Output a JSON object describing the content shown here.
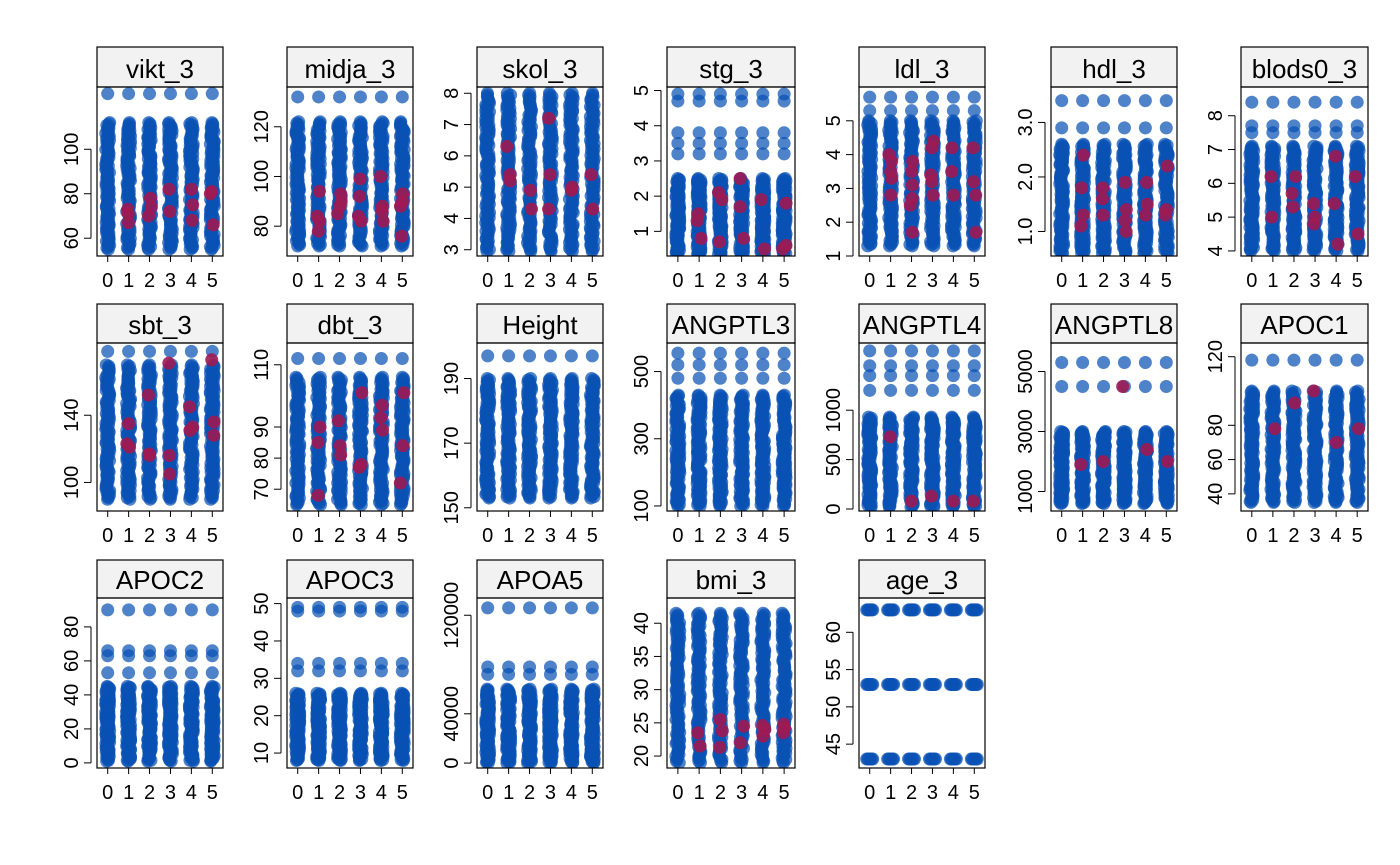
{
  "colors": {
    "observed": "#0a52b4",
    "imputed": "#9e1a52",
    "strip_fill": "#f2f2f2"
  },
  "chart_data": [
    {
      "type": "scatter",
      "title": "vikt_3",
      "x_ticks": [
        "0",
        "1",
        "2",
        "3",
        "4",
        "5"
      ],
      "y_ticks": [
        "60",
        "80",
        "100"
      ],
      "ylim": [
        52,
        128
      ],
      "obs_min": 55,
      "obs_max": 112,
      "outliers": [
        125
      ],
      "imputed": [
        [
          1,
          67
        ],
        [
          1,
          71
        ],
        [
          1,
          73
        ],
        [
          2,
          70
        ],
        [
          2,
          74
        ],
        [
          2,
          78
        ],
        [
          3,
          72
        ],
        [
          3,
          82
        ],
        [
          4,
          68
        ],
        [
          4,
          75
        ],
        [
          4,
          82
        ],
        [
          5,
          66
        ],
        [
          5,
          80
        ],
        [
          5,
          81
        ]
      ]
    },
    {
      "type": "scatter",
      "title": "midja_3",
      "x_ticks": [
        "0",
        "1",
        "2",
        "3",
        "4",
        "5"
      ],
      "y_ticks": [
        "80",
        "100",
        "120"
      ],
      "ylim": [
        68,
        136
      ],
      "obs_min": 72,
      "obs_max": 122,
      "outliers": [
        132
      ],
      "imputed": [
        [
          1,
          78
        ],
        [
          1,
          82
        ],
        [
          1,
          84
        ],
        [
          1,
          94
        ],
        [
          2,
          85
        ],
        [
          2,
          88
        ],
        [
          2,
          90
        ],
        [
          2,
          93
        ],
        [
          3,
          82
        ],
        [
          3,
          84
        ],
        [
          3,
          92
        ],
        [
          3,
          99
        ],
        [
          4,
          82
        ],
        [
          4,
          86
        ],
        [
          4,
          88
        ],
        [
          4,
          100
        ],
        [
          5,
          76
        ],
        [
          5,
          88
        ],
        [
          5,
          90
        ],
        [
          5,
          93
        ]
      ]
    },
    {
      "type": "scatter",
      "title": "skol_3",
      "x_ticks": [
        "0",
        "1",
        "2",
        "3",
        "4",
        "5"
      ],
      "y_ticks": [
        "3",
        "4",
        "5",
        "6",
        "7",
        "8"
      ],
      "ylim": [
        2.8,
        8.2
      ],
      "obs_min": 2.95,
      "obs_max": 8.0,
      "outliers": [],
      "imputed": [
        [
          1,
          5.2
        ],
        [
          1,
          5.4
        ],
        [
          1,
          6.3
        ],
        [
          2,
          4.3
        ],
        [
          2,
          4.9
        ],
        [
          3,
          4.3
        ],
        [
          3,
          5.4
        ],
        [
          3,
          7.2
        ],
        [
          4,
          4.9
        ],
        [
          4,
          5.0
        ],
        [
          5,
          4.3
        ],
        [
          5,
          5.4
        ]
      ]
    },
    {
      "type": "scatter",
      "title": "stg_3",
      "x_ticks": [
        "0",
        "1",
        "2",
        "3",
        "4",
        "5"
      ],
      "y_ticks": [
        "1",
        "2",
        "3",
        "4",
        "5"
      ],
      "ylim": [
        0.3,
        5.1
      ],
      "obs_min": 0.35,
      "obs_max": 2.5,
      "outliers": [
        3.2,
        3.5,
        3.8,
        4.7,
        4.9
      ],
      "imputed": [
        [
          1,
          0.8
        ],
        [
          1,
          1.3
        ],
        [
          1,
          1.5
        ],
        [
          2,
          0.7
        ],
        [
          2,
          1.9
        ],
        [
          2,
          2.1
        ],
        [
          3,
          0.8
        ],
        [
          3,
          1.7
        ],
        [
          3,
          2.5
        ],
        [
          4,
          0.5
        ],
        [
          4,
          1.9
        ],
        [
          5,
          0.5
        ],
        [
          5,
          0.6
        ],
        [
          5,
          1.8
        ]
      ]
    },
    {
      "type": "scatter",
      "title": "ldl_3",
      "x_ticks": [
        "0",
        "1",
        "2",
        "3",
        "4",
        "5"
      ],
      "y_ticks": [
        "1",
        "2",
        "3",
        "4",
        "5"
      ],
      "ylim": [
        1.0,
        6.0
      ],
      "obs_min": 1.3,
      "obs_max": 5.0,
      "outliers": [
        5.3,
        5.7
      ],
      "imputed": [
        [
          1,
          2.8
        ],
        [
          1,
          3.3
        ],
        [
          1,
          3.5
        ],
        [
          1,
          3.8
        ],
        [
          1,
          4.0
        ],
        [
          2,
          1.7
        ],
        [
          2,
          2.5
        ],
        [
          2,
          2.7
        ],
        [
          2,
          3.1
        ],
        [
          2,
          3.5
        ],
        [
          2,
          3.8
        ],
        [
          3,
          2.8
        ],
        [
          3,
          3.2
        ],
        [
          3,
          3.4
        ],
        [
          3,
          4.2
        ],
        [
          3,
          4.4
        ],
        [
          4,
          2.8
        ],
        [
          4,
          3.5
        ],
        [
          4,
          4.2
        ],
        [
          5,
          1.7
        ],
        [
          5,
          2.8
        ],
        [
          5,
          3.2
        ],
        [
          5,
          4.2
        ]
      ]
    },
    {
      "type": "scatter",
      "title": "hdl_3",
      "x_ticks": [
        "0",
        "1",
        "2",
        "3",
        "4",
        "5"
      ],
      "y_ticks": [
        "1.0",
        "2.0",
        "3.0"
      ],
      "ylim": [
        0.55,
        3.65
      ],
      "obs_min": 0.6,
      "obs_max": 2.6,
      "outliers": [
        2.9,
        3.4
      ],
      "imputed": [
        [
          1,
          1.1
        ],
        [
          1,
          1.3
        ],
        [
          1,
          1.8
        ],
        [
          1,
          2.4
        ],
        [
          2,
          1.3
        ],
        [
          2,
          1.6
        ],
        [
          2,
          1.8
        ],
        [
          3,
          1.0
        ],
        [
          3,
          1.2
        ],
        [
          3,
          1.4
        ],
        [
          3,
          1.9
        ],
        [
          4,
          1.3
        ],
        [
          4,
          1.5
        ],
        [
          4,
          1.9
        ],
        [
          5,
          1.3
        ],
        [
          5,
          1.4
        ],
        [
          5,
          2.2
        ]
      ]
    },
    {
      "type": "scatter",
      "title": "blods0_3",
      "x_ticks": [
        "0",
        "1",
        "2",
        "3",
        "4",
        "5"
      ],
      "y_ticks": [
        "4",
        "5",
        "6",
        "7",
        "8"
      ],
      "ylim": [
        3.85,
        8.85
      ],
      "obs_min": 4.0,
      "obs_max": 7.1,
      "outliers": [
        7.5,
        7.7,
        8.4
      ],
      "imputed": [
        [
          1,
          5.0
        ],
        [
          1,
          6.2
        ],
        [
          2,
          5.3
        ],
        [
          2,
          5.7
        ],
        [
          2,
          6.2
        ],
        [
          3,
          4.8
        ],
        [
          3,
          5.0
        ],
        [
          3,
          5.4
        ],
        [
          4,
          4.2
        ],
        [
          4,
          5.4
        ],
        [
          4,
          6.8
        ],
        [
          5,
          4.5
        ],
        [
          5,
          6.2
        ]
      ]
    },
    {
      "type": "scatter",
      "title": "sbt_3",
      "x_ticks": [
        "0",
        "1",
        "2",
        "3",
        "4",
        "5"
      ],
      "y_ticks": [
        "100",
        "140"
      ],
      "ylim": [
        83,
        183
      ],
      "obs_min": 90,
      "obs_max": 170,
      "outliers": [
        178
      ],
      "imputed": [
        [
          1,
          121
        ],
        [
          1,
          123
        ],
        [
          1,
          135
        ],
        [
          2,
          116
        ],
        [
          2,
          117
        ],
        [
          2,
          152
        ],
        [
          3,
          105
        ],
        [
          3,
          116
        ],
        [
          3,
          171
        ],
        [
          4,
          131
        ],
        [
          4,
          133
        ],
        [
          4,
          145
        ],
        [
          5,
          128
        ],
        [
          5,
          136
        ],
        [
          5,
          173
        ]
      ]
    },
    {
      "type": "scatter",
      "title": "dbt_3",
      "x_ticks": [
        "0",
        "1",
        "2",
        "3",
        "4",
        "5"
      ],
      "y_ticks": [
        "70",
        "80",
        "90",
        "110"
      ],
      "ylim": [
        63,
        117
      ],
      "obs_min": 65,
      "obs_max": 106,
      "outliers": [
        112
      ],
      "imputed": [
        [
          1,
          68
        ],
        [
          1,
          85
        ],
        [
          1,
          90
        ],
        [
          2,
          81
        ],
        [
          2,
          84
        ],
        [
          2,
          92
        ],
        [
          3,
          77
        ],
        [
          3,
          78
        ],
        [
          3,
          101
        ],
        [
          4,
          89
        ],
        [
          4,
          93
        ],
        [
          4,
          97
        ],
        [
          5,
          72
        ],
        [
          5,
          84
        ],
        [
          5,
          101
        ]
      ]
    },
    {
      "type": "scatter",
      "title": "Height",
      "x_ticks": [
        "0",
        "1",
        "2",
        "3",
        "4",
        "5"
      ],
      "y_ticks": [
        "150",
        "170",
        "190"
      ],
      "ylim": [
        149,
        201
      ],
      "obs_min": 153,
      "obs_max": 190,
      "outliers": [
        197
      ],
      "imputed": []
    },
    {
      "type": "scatter",
      "title": "ANGPTL3",
      "x_ticks": [
        "0",
        "1",
        "2",
        "3",
        "4",
        "5"
      ],
      "y_ticks": [
        "100",
        "300",
        "500"
      ],
      "ylim": [
        85,
        585
      ],
      "obs_min": 100,
      "obs_max": 430,
      "outliers": [
        480,
        520,
        555
      ],
      "imputed": []
    },
    {
      "type": "scatter",
      "title": "ANGPTL4",
      "x_ticks": [
        "0",
        "1",
        "2",
        "3",
        "4",
        "5"
      ],
      "y_ticks": [
        "0",
        "500",
        "1000"
      ],
      "ylim": [
        -20,
        1680
      ],
      "obs_min": 20,
      "obs_max": 930,
      "outliers": [
        1200,
        1350,
        1450,
        1600
      ],
      "imputed": [
        [
          1,
          730
        ],
        [
          2,
          80
        ],
        [
          3,
          130
        ],
        [
          4,
          80
        ],
        [
          5,
          80
        ]
      ]
    },
    {
      "type": "scatter",
      "title": "ANGPTL8",
      "x_ticks": [
        "0",
        "1",
        "2",
        "3",
        "4",
        "5"
      ],
      "y_ticks": [
        "1000",
        "3000",
        "5000"
      ],
      "ylim": [
        350,
        5950
      ],
      "obs_min": 600,
      "obs_max": 3000,
      "outliers": [
        4500,
        5300
      ],
      "imputed": [
        [
          1,
          1900
        ],
        [
          2,
          2000
        ],
        [
          3,
          4500
        ],
        [
          4,
          2400
        ],
        [
          5,
          2000
        ]
      ]
    },
    {
      "type": "scatter",
      "title": "APOC1",
      "x_ticks": [
        "0",
        "1",
        "2",
        "3",
        "4",
        "5"
      ],
      "y_ticks": [
        "40",
        "60",
        "80",
        "120"
      ],
      "ylim": [
        30,
        128
      ],
      "obs_min": 35,
      "obs_max": 100,
      "outliers": [
        118
      ],
      "imputed": [
        [
          1,
          78
        ],
        [
          2,
          93
        ],
        [
          3,
          100
        ],
        [
          4,
          70
        ],
        [
          5,
          78
        ]
      ]
    },
    {
      "type": "scatter",
      "title": "APOC2",
      "x_ticks": [
        "0",
        "1",
        "2",
        "3",
        "4",
        "5"
      ],
      "y_ticks": [
        "0",
        "20",
        "40",
        "60",
        "80"
      ],
      "ylim": [
        -3,
        97
      ],
      "obs_min": 1,
      "obs_max": 45,
      "outliers": [
        53,
        63,
        66,
        90
      ],
      "imputed": []
    },
    {
      "type": "scatter",
      "title": "APOC3",
      "x_ticks": [
        "0",
        "1",
        "2",
        "3",
        "4",
        "5"
      ],
      "y_ticks": [
        "10",
        "20",
        "30",
        "40",
        "50"
      ],
      "ylim": [
        6,
        51.5
      ],
      "obs_min": 8,
      "obs_max": 26,
      "outliers": [
        32,
        34,
        48,
        49
      ],
      "imputed": []
    },
    {
      "type": "scatter",
      "title": "APOA5",
      "x_ticks": [
        "0",
        "1",
        "2",
        "3",
        "4",
        "5"
      ],
      "y_ticks": [
        "0",
        "40000",
        "120000"
      ],
      "ylim": [
        -4000,
        134000
      ],
      "obs_min": 0,
      "obs_max": 60000,
      "outliers": [
        72000,
        78000,
        126000
      ],
      "imputed": []
    },
    {
      "type": "scatter",
      "title": "bmi_3",
      "x_ticks": [
        "0",
        "1",
        "2",
        "3",
        "4",
        "5"
      ],
      "y_ticks": [
        "20",
        "25",
        "30",
        "35",
        "40"
      ],
      "ylim": [
        18.2,
        43.8
      ],
      "obs_min": 19,
      "obs_max": 41.5,
      "outliers": [],
      "imputed": [
        [
          1,
          21.5
        ],
        [
          1,
          23.5
        ],
        [
          2,
          21.3
        ],
        [
          2,
          23.8
        ],
        [
          2,
          25.5
        ],
        [
          3,
          22
        ],
        [
          3,
          24.5
        ],
        [
          4,
          23
        ],
        [
          4,
          24
        ],
        [
          4,
          24.6
        ],
        [
          5,
          23.5
        ],
        [
          5,
          24.2
        ],
        [
          5,
          24.8
        ]
      ]
    },
    {
      "type": "scatter",
      "title": "age_3",
      "x_ticks": [
        "0",
        "1",
        "2",
        "3",
        "4",
        "5"
      ],
      "y_ticks": [
        "45",
        "50",
        "55",
        "60"
      ],
      "ylim": [
        41.8,
        64.6
      ],
      "obs_min": 43,
      "obs_max": 63,
      "outliers": [],
      "levels": [
        43,
        53,
        63
      ],
      "imputed": []
    }
  ]
}
